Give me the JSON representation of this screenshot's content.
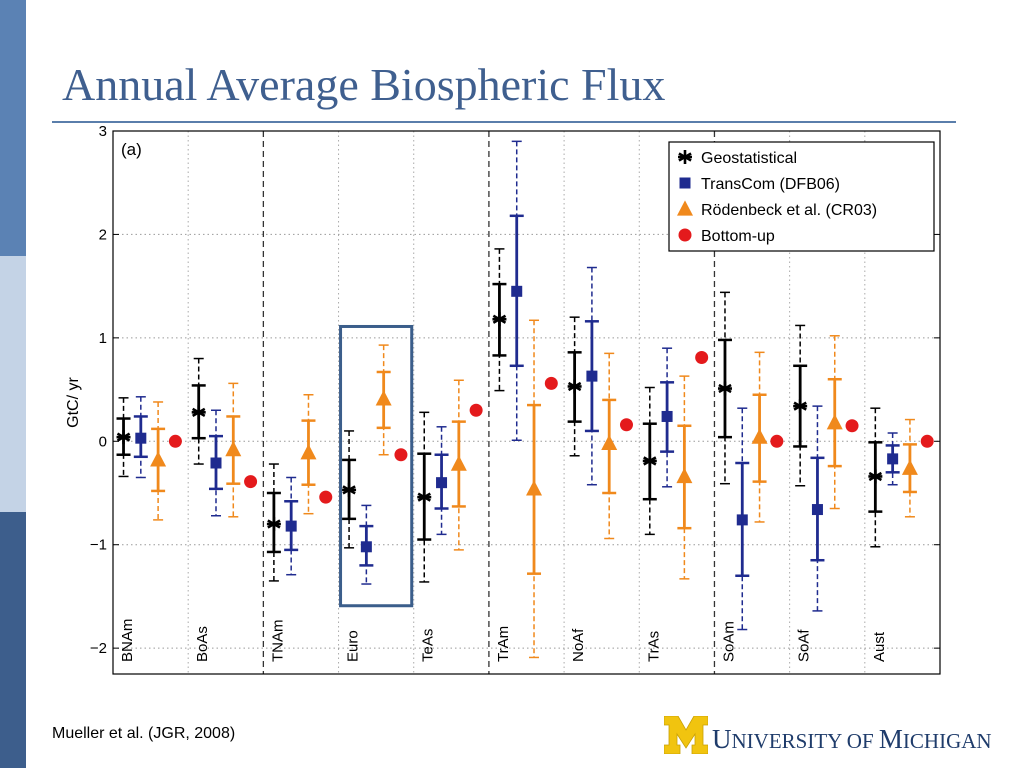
{
  "slide": {
    "title": "Annual Average Biospheric Flux",
    "citation": "Mueller et al. (JGR, 2008)",
    "logo": {
      "first_letter": "U",
      "first_rest": "NIVERSITY OF ",
      "second_letter": "M",
      "second_rest": "ICHIGAN"
    },
    "colors": {
      "sidebar_top": "#5b82b4",
      "sidebar_mid": "#c4d3e6",
      "sidebar_bottom": "#3d5e8c",
      "title": "#3f5f8f",
      "highlight_box": "#3b5e8b"
    }
  },
  "chart_data": {
    "type": "scatter",
    "panel_label": "(a)",
    "ylabel": "GtC/ yr",
    "xlabel": "",
    "ylim": [
      -2.25,
      3
    ],
    "yticks": [
      -2,
      -1,
      0,
      1,
      2,
      3
    ],
    "ytick_labels": [
      "−2",
      "−1",
      "0",
      "1",
      "2",
      "3"
    ],
    "grid": true,
    "legend_position": "top-right",
    "categories": [
      "BNAm",
      "BoAs",
      "TNAm",
      "Euro",
      "TeAs",
      "TrAm",
      "NoAf",
      "TrAs",
      "SoAm",
      "SoAf",
      "Aust"
    ],
    "highlighted_category": "Euro",
    "series": [
      {
        "name": "Geostatistical",
        "marker": "asterisk",
        "color": "#000000",
        "values": [
          0.04,
          0.28,
          -0.8,
          -0.47,
          -0.54,
          1.18,
          0.53,
          -0.19,
          0.51,
          0.34,
          -0.34
        ],
        "inner": [
          [
            -0.13,
            0.22
          ],
          [
            0.03,
            0.54
          ],
          [
            -1.07,
            -0.5
          ],
          [
            -0.75,
            -0.18
          ],
          [
            -0.95,
            -0.12
          ],
          [
            0.83,
            1.52
          ],
          [
            0.19,
            0.86
          ],
          [
            -0.56,
            0.17
          ],
          [
            0.04,
            0.98
          ],
          [
            -0.05,
            0.73
          ],
          [
            -0.68,
            -0.01
          ]
        ],
        "outer": [
          [
            -0.34,
            0.42
          ],
          [
            -0.22,
            0.8
          ],
          [
            -1.35,
            -0.22
          ],
          [
            -1.03,
            0.1
          ],
          [
            -1.36,
            0.28
          ],
          [
            0.49,
            1.86
          ],
          [
            -0.14,
            1.2
          ],
          [
            -0.9,
            0.52
          ],
          [
            -0.41,
            1.44
          ],
          [
            -0.43,
            1.12
          ],
          [
            -1.02,
            0.32
          ]
        ]
      },
      {
        "name": "TransCom (DFB06)",
        "marker": "square",
        "color": "#1f2b8f",
        "values": [
          0.03,
          -0.21,
          -0.82,
          -1.02,
          -0.4,
          1.45,
          0.63,
          0.24,
          -0.76,
          -0.66,
          -0.17
        ],
        "inner": [
          [
            -0.15,
            0.24
          ],
          [
            -0.46,
            0.05
          ],
          [
            -1.05,
            -0.58
          ],
          [
            -1.2,
            -0.82
          ],
          [
            -0.65,
            -0.13
          ],
          [
            0.73,
            2.18
          ],
          [
            0.1,
            1.16
          ],
          [
            -0.1,
            0.57
          ],
          [
            -1.3,
            -0.21
          ],
          [
            -1.15,
            -0.16
          ],
          [
            -0.3,
            -0.04
          ]
        ],
        "outer": [
          [
            -0.35,
            0.43
          ],
          [
            -0.72,
            0.3
          ],
          [
            -1.29,
            -0.35
          ],
          [
            -1.38,
            -0.62
          ],
          [
            -0.9,
            0.14
          ],
          [
            0.01,
            2.9
          ],
          [
            -0.42,
            1.68
          ],
          [
            -0.44,
            0.9
          ],
          [
            -1.82,
            0.32
          ],
          [
            -1.64,
            0.34
          ],
          [
            -0.42,
            0.08
          ]
        ]
      },
      {
        "name": "Rödenbeck et al. (CR03)",
        "marker": "triangle",
        "color": "#f0891c",
        "values": [
          -0.18,
          -0.08,
          -0.11,
          0.41,
          -0.22,
          -0.46,
          -0.02,
          -0.34,
          0.04,
          0.18,
          -0.26
        ],
        "inner": [
          [
            -0.48,
            0.12
          ],
          [
            -0.41,
            0.24
          ],
          [
            -0.42,
            0.2
          ],
          [
            0.13,
            0.67
          ],
          [
            -0.63,
            0.19
          ],
          [
            -1.28,
            0.35
          ],
          [
            -0.5,
            0.4
          ],
          [
            -0.84,
            0.15
          ],
          [
            -0.39,
            0.45
          ],
          [
            -0.24,
            0.6
          ],
          [
            -0.49,
            -0.03
          ]
        ],
        "outer": [
          [
            -0.76,
            0.38
          ],
          [
            -0.73,
            0.56
          ],
          [
            -0.7,
            0.45
          ],
          [
            -0.13,
            0.93
          ],
          [
            -1.05,
            0.59
          ],
          [
            -2.09,
            1.17
          ],
          [
            -0.94,
            0.85
          ],
          [
            -1.33,
            0.63
          ],
          [
            -0.78,
            0.86
          ],
          [
            -0.65,
            1.02
          ],
          [
            -0.73,
            0.21
          ]
        ]
      },
      {
        "name": "Bottom-up",
        "marker": "circle",
        "color": "#e41a1c",
        "values": [
          0.0,
          -0.39,
          -0.54,
          -0.13,
          0.3,
          0.56,
          0.16,
          0.81,
          0.0,
          0.15,
          0.0
        ]
      }
    ]
  }
}
